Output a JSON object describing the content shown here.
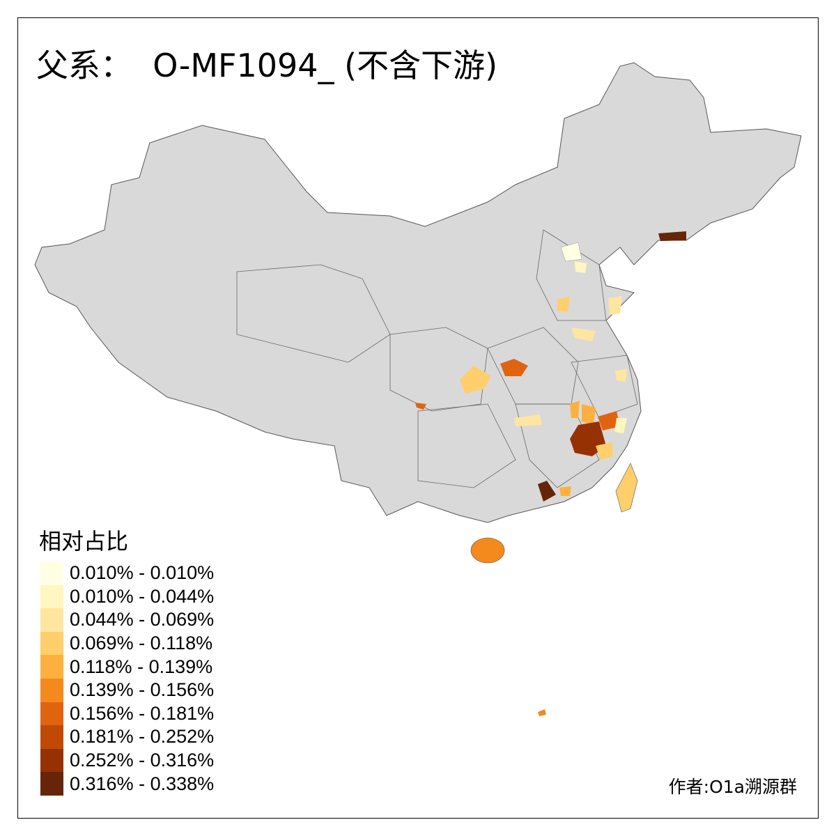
{
  "title": "父系：  O-MF1094_ (不含下游)",
  "legend": {
    "title": "相对占比",
    "items": [
      {
        "label": "0.010% - 0.010%",
        "color": "#FFFFE3"
      },
      {
        "label": "0.010% - 0.044%",
        "color": "#FFF6C1"
      },
      {
        "label": "0.044% - 0.069%",
        "color": "#FEE6A0"
      },
      {
        "label": "0.069% - 0.118%",
        "color": "#FECF6A"
      },
      {
        "label": "0.118% - 0.139%",
        "color": "#FEB03E"
      },
      {
        "label": "0.139% - 0.156%",
        "color": "#F4891E"
      },
      {
        "label": "0.156% - 0.181%",
        "color": "#E0640F"
      },
      {
        "label": "0.181% - 0.252%",
        "color": "#C04A03"
      },
      {
        "label": "0.252% - 0.316%",
        "color": "#963103"
      },
      {
        "label": "0.316% - 0.338%",
        "color": "#662506"
      }
    ]
  },
  "credit": "作者:O1a溯源群",
  "colors": {
    "base_land": "#D9D9D9",
    "border": "#555555"
  }
}
